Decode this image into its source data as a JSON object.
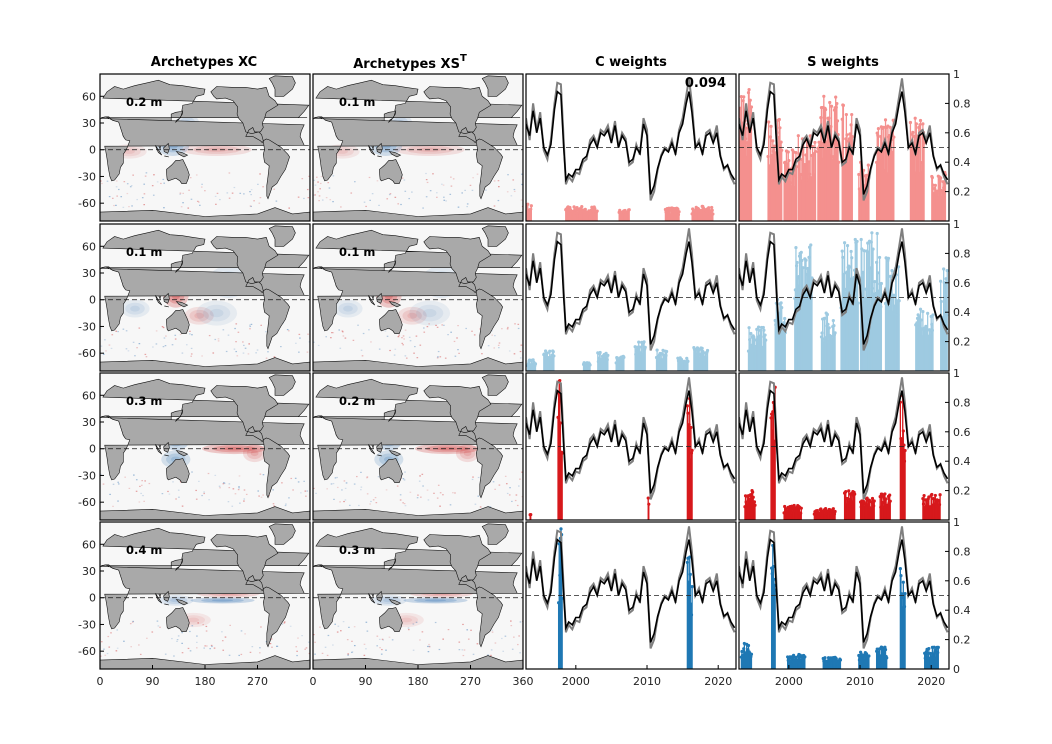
{
  "column_titles": {
    "xc": "Archetypes XC",
    "xs": "Archetypes XS",
    "xs_superscript": "T",
    "c_weights": "C weights",
    "s_weights": "S weights"
  },
  "annotation": "0.094",
  "colors": {
    "land": "#a9a9a9",
    "warm": "#c81d1d",
    "cool": "#2166ac",
    "index_gray": "#7f7f7f",
    "index_black": "#000000",
    "rows": [
      "#f4908e",
      "#9ecae1",
      "#d7191c",
      "#1f78b4"
    ]
  },
  "chart_data": [
    {
      "type": "heatmap",
      "panel": "archetype maps",
      "xticks": [
        0,
        90,
        180,
        270,
        360
      ],
      "yticks": [
        60,
        30,
        0,
        -30,
        -60
      ],
      "xlim": [
        0,
        360
      ],
      "ylim": [
        -80,
        85
      ],
      "amplitudes_xc": [
        "0.2 m",
        "0.1 m",
        "0.3 m",
        "0.4 m"
      ],
      "amplitudes_xs": [
        "0.1 m",
        "0.1 m",
        "0.2 m",
        "0.3 m"
      ],
      "patterns": [
        {
          "warm": [
            [
              200,
              0,
              60,
              7,
              0.55
            ],
            [
              50,
              -2,
              30,
              8,
              0.4
            ]
          ],
          "cool": [
            [
              125,
              5,
              28,
              12,
              0.85
            ],
            [
              150,
              30,
              20,
              10,
              0.5
            ]
          ]
        },
        {
          "warm": [
            [
              130,
              5,
              22,
              14,
              1.0
            ],
            [
              170,
              -18,
              25,
              10,
              0.5
            ]
          ],
          "cool": [
            [
              220,
              20,
              35,
              18,
              0.45
            ],
            [
              200,
              -15,
              35,
              14,
              0.35
            ],
            [
              60,
              -10,
              25,
              10,
              0.4
            ]
          ]
        },
        {
          "warm": [
            [
              230,
              0,
              55,
              6,
              1.0
            ],
            [
              265,
              -5,
              20,
              10,
              0.6
            ]
          ],
          "cool": [
            [
              130,
              12,
              25,
              14,
              0.9
            ],
            [
              130,
              -12,
              25,
              10,
              0.75
            ],
            [
              200,
              20,
              40,
              10,
              0.4
            ]
          ]
        },
        {
          "warm": [
            [
              220,
              5,
              55,
              5,
              0.7
            ],
            [
              160,
              -25,
              30,
              8,
              0.35
            ]
          ],
          "cool": [
            [
              210,
              -3,
              55,
              3.5,
              1.0
            ],
            [
              130,
              -3,
              30,
              6,
              0.55
            ]
          ]
        }
      ]
    },
    {
      "type": "line",
      "panel": "weights",
      "xticks": [
        2000,
        2010,
        2020
      ],
      "xlim": [
        1993,
        2022.5
      ],
      "ylim": [
        0,
        1
      ],
      "yticks": [
        0.2,
        0.4,
        0.6,
        0.8,
        1
      ],
      "reference_line": 0.5,
      "index_gray": [
        [
          1993.0,
          0.7
        ],
        [
          1993.5,
          0.55
        ],
        [
          1994.0,
          0.8
        ],
        [
          1994.5,
          0.62
        ],
        [
          1995.0,
          0.74
        ],
        [
          1995.5,
          0.48
        ],
        [
          1996.0,
          0.42
        ],
        [
          1996.5,
          0.55
        ],
        [
          1997.0,
          0.8
        ],
        [
          1997.4,
          0.94
        ],
        [
          1997.9,
          0.93
        ],
        [
          1998.3,
          0.55
        ],
        [
          1998.6,
          0.25
        ],
        [
          1999.0,
          0.3
        ],
        [
          1999.5,
          0.27
        ],
        [
          2000.0,
          0.33
        ],
        [
          2000.5,
          0.32
        ],
        [
          2001.0,
          0.4
        ],
        [
          2001.5,
          0.42
        ],
        [
          2002.0,
          0.55
        ],
        [
          2002.5,
          0.58
        ],
        [
          2003.0,
          0.52
        ],
        [
          2003.5,
          0.62
        ],
        [
          2004.0,
          0.6
        ],
        [
          2004.5,
          0.65
        ],
        [
          2005.0,
          0.55
        ],
        [
          2005.5,
          0.68
        ],
        [
          2006.0,
          0.5
        ],
        [
          2006.5,
          0.6
        ],
        [
          2007.0,
          0.56
        ],
        [
          2007.5,
          0.38
        ],
        [
          2008.0,
          0.4
        ],
        [
          2008.5,
          0.52
        ],
        [
          2009.0,
          0.45
        ],
        [
          2009.5,
          0.7
        ],
        [
          2010.0,
          0.62
        ],
        [
          2010.5,
          0.14
        ],
        [
          2011.0,
          0.2
        ],
        [
          2011.5,
          0.35
        ],
        [
          2012.0,
          0.45
        ],
        [
          2012.5,
          0.5
        ],
        [
          2013.0,
          0.48
        ],
        [
          2013.5,
          0.55
        ],
        [
          2014.0,
          0.45
        ],
        [
          2014.5,
          0.62
        ],
        [
          2015.0,
          0.7
        ],
        [
          2015.5,
          0.85
        ],
        [
          2015.9,
          0.97
        ],
        [
          2016.3,
          0.8
        ],
        [
          2016.8,
          0.5
        ],
        [
          2017.3,
          0.55
        ],
        [
          2017.8,
          0.45
        ],
        [
          2018.3,
          0.6
        ],
        [
          2018.8,
          0.62
        ],
        [
          2019.3,
          0.55
        ],
        [
          2019.8,
          0.65
        ],
        [
          2020.3,
          0.45
        ],
        [
          2020.8,
          0.35
        ],
        [
          2021.3,
          0.38
        ],
        [
          2021.8,
          0.3
        ],
        [
          2022.3,
          0.25
        ]
      ],
      "index_black": [
        [
          1993.0,
          0.66
        ],
        [
          1993.5,
          0.58
        ],
        [
          1994.0,
          0.75
        ],
        [
          1994.5,
          0.6
        ],
        [
          1995.0,
          0.7
        ],
        [
          1995.5,
          0.5
        ],
        [
          1996.0,
          0.45
        ],
        [
          1996.5,
          0.52
        ],
        [
          1997.0,
          0.76
        ],
        [
          1997.4,
          0.88
        ],
        [
          1997.9,
          0.86
        ],
        [
          1998.3,
          0.5
        ],
        [
          1998.6,
          0.28
        ],
        [
          1999.0,
          0.32
        ],
        [
          1999.5,
          0.3
        ],
        [
          2000.0,
          0.35
        ],
        [
          2000.5,
          0.35
        ],
        [
          2001.0,
          0.42
        ],
        [
          2001.5,
          0.44
        ],
        [
          2002.0,
          0.52
        ],
        [
          2002.5,
          0.56
        ],
        [
          2003.0,
          0.5
        ],
        [
          2003.5,
          0.6
        ],
        [
          2004.0,
          0.58
        ],
        [
          2004.5,
          0.62
        ],
        [
          2005.0,
          0.53
        ],
        [
          2005.5,
          0.65
        ],
        [
          2006.0,
          0.5
        ],
        [
          2006.5,
          0.58
        ],
        [
          2007.0,
          0.54
        ],
        [
          2007.5,
          0.4
        ],
        [
          2008.0,
          0.42
        ],
        [
          2008.5,
          0.5
        ],
        [
          2009.0,
          0.46
        ],
        [
          2009.5,
          0.66
        ],
        [
          2010.0,
          0.58
        ],
        [
          2010.5,
          0.18
        ],
        [
          2011.0,
          0.24
        ],
        [
          2011.5,
          0.36
        ],
        [
          2012.0,
          0.44
        ],
        [
          2012.5,
          0.49
        ],
        [
          2013.0,
          0.47
        ],
        [
          2013.5,
          0.53
        ],
        [
          2014.0,
          0.46
        ],
        [
          2014.5,
          0.6
        ],
        [
          2015.0,
          0.66
        ],
        [
          2015.5,
          0.8
        ],
        [
          2015.9,
          0.88
        ],
        [
          2016.3,
          0.74
        ],
        [
          2016.8,
          0.5
        ],
        [
          2017.3,
          0.53
        ],
        [
          2017.8,
          0.46
        ],
        [
          2018.3,
          0.58
        ],
        [
          2018.8,
          0.6
        ],
        [
          2019.3,
          0.53
        ],
        [
          2019.8,
          0.6
        ],
        [
          2020.3,
          0.44
        ],
        [
          2020.8,
          0.36
        ],
        [
          2021.3,
          0.38
        ],
        [
          2021.8,
          0.32
        ],
        [
          2022.3,
          0.28
        ]
      ],
      "c_weights_events": [
        [
          [
            1993,
            0.12,
            1.5
          ],
          [
            2000.8,
            0.1,
            4.5
          ],
          [
            2006.8,
            0.08,
            1.5
          ],
          [
            2013.5,
            0.09,
            2.0
          ],
          [
            2017.8,
            0.1,
            3.0
          ]
        ],
        [
          [
            1993.8,
            0.08,
            1.2
          ],
          [
            1996.2,
            0.14,
            1.5
          ],
          [
            2001.5,
            0.06,
            1.0
          ],
          [
            2003.8,
            0.14,
            1.5
          ],
          [
            2006.2,
            0.12,
            1.2
          ],
          [
            2009.0,
            0.2,
            1.5
          ],
          [
            2012.0,
            0.15,
            1.5
          ],
          [
            2015.0,
            0.1,
            1.5
          ],
          [
            2017.5,
            0.16,
            2.0
          ]
        ],
        [
          [
            1997.8,
            0.95,
            0.7
          ],
          [
            2010.2,
            0.2,
            0.2
          ],
          [
            2016.0,
            0.85,
            0.7
          ],
          [
            1993.6,
            0.08,
            0.2
          ]
        ],
        [
          [
            1997.8,
            1.0,
            0.6
          ],
          [
            2016.0,
            0.8,
            0.7
          ]
        ]
      ],
      "s_weights_events": [
        [
          [
            1993.5,
            0.95,
            2.5
          ],
          [
            1998.0,
            0.7,
            2.0
          ],
          [
            2000.2,
            0.5,
            1.8
          ],
          [
            2002.5,
            0.6,
            2.5
          ],
          [
            2005.5,
            0.85,
            3.0
          ],
          [
            2008.2,
            0.8,
            1.5
          ],
          [
            2010.5,
            0.4,
            1.5
          ],
          [
            2013.5,
            0.7,
            2.5
          ],
          [
            2018.0,
            0.7,
            2.0
          ],
          [
            2021.0,
            0.35,
            2.0
          ]
        ],
        [
          [
            1995.5,
            0.3,
            2.5
          ],
          [
            1998.8,
            0.5,
            1.5
          ],
          [
            2002.0,
            0.9,
            2.5
          ],
          [
            2005.5,
            0.4,
            2.0
          ],
          [
            2008.5,
            0.9,
            2.5
          ],
          [
            2011.5,
            0.95,
            3.0
          ],
          [
            2014.5,
            0.8,
            2.0
          ],
          [
            2019.0,
            0.45,
            2.5
          ],
          [
            2021.8,
            0.7,
            1.0
          ]
        ],
        [
          [
            1997.8,
            1.0,
            0.7
          ],
          [
            1994.5,
            0.2,
            1.5
          ],
          [
            2000.5,
            0.1,
            2.5
          ],
          [
            2005.0,
            0.08,
            3.0
          ],
          [
            2008.5,
            0.2,
            1.5
          ],
          [
            2011.0,
            0.15,
            2.0
          ],
          [
            2013.5,
            0.18,
            1.5
          ],
          [
            2016.0,
            0.85,
            0.7
          ],
          [
            2020.0,
            0.18,
            2.5
          ]
        ],
        [
          [
            1997.8,
            1.0,
            0.6
          ],
          [
            1994.0,
            0.18,
            1.5
          ],
          [
            2001.0,
            0.1,
            2.5
          ],
          [
            2006.0,
            0.08,
            2.5
          ],
          [
            2010.5,
            0.12,
            1.5
          ],
          [
            2013.0,
            0.15,
            1.5
          ],
          [
            2016.0,
            0.9,
            0.8
          ],
          [
            2020.0,
            0.15,
            2.0
          ]
        ]
      ]
    }
  ]
}
